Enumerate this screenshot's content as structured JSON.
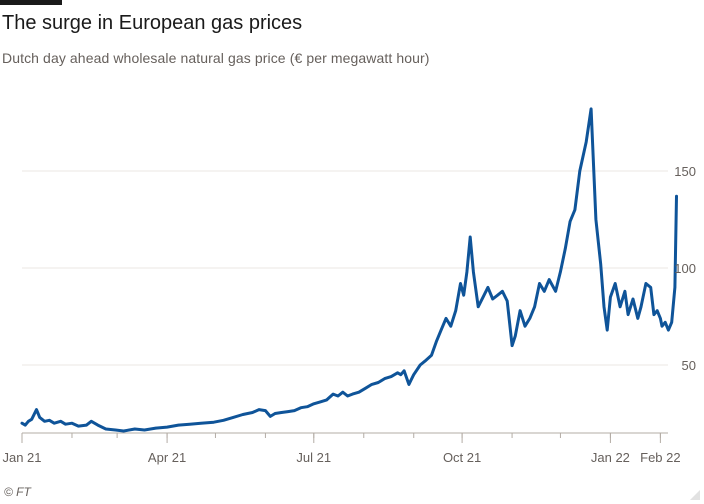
{
  "header": {
    "title": "The surge in European gas prices",
    "subtitle": "Dutch day ahead wholesale natural gas price (€ per megawatt hour)"
  },
  "footer": {
    "source": "© FT"
  },
  "colors": {
    "line": "#0f5499",
    "grid": "#ebe7e3",
    "axis": "#b3aca5",
    "text": "#66605c"
  },
  "chart_data": {
    "type": "line",
    "title": "The surge in European gas prices",
    "subtitle": "Dutch day ahead wholesale natural gas price (€ per megawatt hour)",
    "xlabel": "",
    "ylabel": "",
    "ylim": [
      18,
      180
    ],
    "xlim": [
      "2021-01-01",
      "2022-02-02"
    ],
    "grid": true,
    "legend": "none",
    "y_ticks": [
      {
        "value": 50,
        "label": "50"
      },
      {
        "value": 100,
        "label": "100"
      },
      {
        "value": 150,
        "label": "150"
      }
    ],
    "x_ticks": [
      {
        "date": "2021-01-01",
        "label": "Jan 21"
      },
      {
        "date": "2021-04-01",
        "label": "Apr 21"
      },
      {
        "date": "2021-07-01",
        "label": "Jul 21"
      },
      {
        "date": "2021-10-01",
        "label": "Oct 21"
      },
      {
        "date": "2022-01-01",
        "label": "Jan 22"
      },
      {
        "date": "2022-02-01",
        "label": "Feb 22"
      }
    ],
    "series": [
      {
        "values": [
          {
            "x": "2021-01-01",
            "y": 20.0
          },
          {
            "x": "2021-01-03",
            "y": 19.0
          },
          {
            "x": "2021-01-05",
            "y": 21.0
          },
          {
            "x": "2021-01-07",
            "y": 22.0
          },
          {
            "x": "2021-01-10",
            "y": 27.0
          },
          {
            "x": "2021-01-12",
            "y": 23.0
          },
          {
            "x": "2021-01-15",
            "y": 21.0
          },
          {
            "x": "2021-01-18",
            "y": 21.5
          },
          {
            "x": "2021-01-21",
            "y": 20.0
          },
          {
            "x": "2021-01-25",
            "y": 21.0
          },
          {
            "x": "2021-01-28",
            "y": 19.5
          },
          {
            "x": "2021-02-01",
            "y": 20.0
          },
          {
            "x": "2021-02-05",
            "y": 18.5
          },
          {
            "x": "2021-02-10",
            "y": 19.0
          },
          {
            "x": "2021-02-13",
            "y": 21.0
          },
          {
            "x": "2021-02-17",
            "y": 19.0
          },
          {
            "x": "2021-02-22",
            "y": 17.0
          },
          {
            "x": "2021-02-28",
            "y": 16.5
          },
          {
            "x": "2021-03-05",
            "y": 16.0
          },
          {
            "x": "2021-03-12",
            "y": 17.0
          },
          {
            "x": "2021-03-18",
            "y": 16.5
          },
          {
            "x": "2021-03-25",
            "y": 17.5
          },
          {
            "x": "2021-04-01",
            "y": 18.0
          },
          {
            "x": "2021-04-08",
            "y": 19.0
          },
          {
            "x": "2021-04-15",
            "y": 19.5
          },
          {
            "x": "2021-04-22",
            "y": 20.0
          },
          {
            "x": "2021-04-30",
            "y": 20.5
          },
          {
            "x": "2021-05-06",
            "y": 21.5
          },
          {
            "x": "2021-05-12",
            "y": 23.0
          },
          {
            "x": "2021-05-18",
            "y": 24.5
          },
          {
            "x": "2021-05-24",
            "y": 25.5
          },
          {
            "x": "2021-05-28",
            "y": 27.0
          },
          {
            "x": "2021-06-01",
            "y": 26.5
          },
          {
            "x": "2021-06-04",
            "y": 23.5
          },
          {
            "x": "2021-06-07",
            "y": 25.0
          },
          {
            "x": "2021-06-11",
            "y": 25.5
          },
          {
            "x": "2021-06-15",
            "y": 26.0
          },
          {
            "x": "2021-06-19",
            "y": 26.5
          },
          {
            "x": "2021-06-23",
            "y": 28.0
          },
          {
            "x": "2021-06-27",
            "y": 28.5
          },
          {
            "x": "2021-07-01",
            "y": 30.0
          },
          {
            "x": "2021-07-05",
            "y": 31.0
          },
          {
            "x": "2021-07-09",
            "y": 32.0
          },
          {
            "x": "2021-07-13",
            "y": 35.0
          },
          {
            "x": "2021-07-16",
            "y": 34.0
          },
          {
            "x": "2021-07-19",
            "y": 36.0
          },
          {
            "x": "2021-07-22",
            "y": 34.0
          },
          {
            "x": "2021-07-25",
            "y": 35.0
          },
          {
            "x": "2021-07-29",
            "y": 36.0
          },
          {
            "x": "2021-08-02",
            "y": 38.0
          },
          {
            "x": "2021-08-06",
            "y": 40.0
          },
          {
            "x": "2021-08-10",
            "y": 41.0
          },
          {
            "x": "2021-08-14",
            "y": 43.0
          },
          {
            "x": "2021-08-18",
            "y": 44.0
          },
          {
            "x": "2021-08-22",
            "y": 46.0
          },
          {
            "x": "2021-08-24",
            "y": 45.0
          },
          {
            "x": "2021-08-26",
            "y": 47.0
          },
          {
            "x": "2021-08-29",
            "y": 40.0
          },
          {
            "x": "2021-09-01",
            "y": 45.0
          },
          {
            "x": "2021-09-05",
            "y": 50.0
          },
          {
            "x": "2021-09-08",
            "y": 52.0
          },
          {
            "x": "2021-09-12",
            "y": 55.0
          },
          {
            "x": "2021-09-15",
            "y": 62.0
          },
          {
            "x": "2021-09-18",
            "y": 68.0
          },
          {
            "x": "2021-09-21",
            "y": 74.0
          },
          {
            "x": "2021-09-24",
            "y": 70.0
          },
          {
            "x": "2021-09-27",
            "y": 78.0
          },
          {
            "x": "2021-09-30",
            "y": 92.0
          },
          {
            "x": "2021-10-02",
            "y": 86.0
          },
          {
            "x": "2021-10-04",
            "y": 98.0
          },
          {
            "x": "2021-10-06",
            "y": 116.0
          },
          {
            "x": "2021-10-08",
            "y": 98.0
          },
          {
            "x": "2021-10-11",
            "y": 80.0
          },
          {
            "x": "2021-10-14",
            "y": 85.0
          },
          {
            "x": "2021-10-17",
            "y": 90.0
          },
          {
            "x": "2021-10-20",
            "y": 84.0
          },
          {
            "x": "2021-10-23",
            "y": 86.0
          },
          {
            "x": "2021-10-26",
            "y": 88.0
          },
          {
            "x": "2021-10-29",
            "y": 83.0
          },
          {
            "x": "2021-11-01",
            "y": 60.0
          },
          {
            "x": "2021-11-03",
            "y": 65.0
          },
          {
            "x": "2021-11-06",
            "y": 78.0
          },
          {
            "x": "2021-11-09",
            "y": 70.0
          },
          {
            "x": "2021-11-12",
            "y": 74.0
          },
          {
            "x": "2021-11-15",
            "y": 80.0
          },
          {
            "x": "2021-11-18",
            "y": 92.0
          },
          {
            "x": "2021-11-21",
            "y": 88.0
          },
          {
            "x": "2021-11-24",
            "y": 94.0
          },
          {
            "x": "2021-11-28",
            "y": 88.0
          },
          {
            "x": "2021-12-01",
            "y": 98.0
          },
          {
            "x": "2021-12-04",
            "y": 110.0
          },
          {
            "x": "2021-12-07",
            "y": 124.0
          },
          {
            "x": "2021-12-10",
            "y": 130.0
          },
          {
            "x": "2021-12-13",
            "y": 150.0
          },
          {
            "x": "2021-12-17",
            "y": 165.0
          },
          {
            "x": "2021-12-20",
            "y": 182.0
          },
          {
            "x": "2021-12-23",
            "y": 125.0
          },
          {
            "x": "2021-12-26",
            "y": 102.0
          },
          {
            "x": "2021-12-28",
            "y": 80.0
          },
          {
            "x": "2021-12-30",
            "y": 68.0
          },
          {
            "x": "2022-01-01",
            "y": 85.0
          },
          {
            "x": "2022-01-04",
            "y": 92.0
          },
          {
            "x": "2022-01-07",
            "y": 80.0
          },
          {
            "x": "2022-01-10",
            "y": 88.0
          },
          {
            "x": "2022-01-12",
            "y": 76.0
          },
          {
            "x": "2022-01-15",
            "y": 84.0
          },
          {
            "x": "2022-01-18",
            "y": 74.0
          },
          {
            "x": "2022-01-20",
            "y": 80.0
          },
          {
            "x": "2022-01-23",
            "y": 92.0
          },
          {
            "x": "2022-01-26",
            "y": 90.0
          },
          {
            "x": "2022-01-28",
            "y": 76.0
          },
          {
            "x": "2022-01-30",
            "y": 78.0
          },
          {
            "x": "2022-02-01",
            "y": 74.0
          },
          {
            "x": "2022-02-02",
            "y": 70.0
          },
          {
            "x": "2022-02-04",
            "y": 72.0
          },
          {
            "x": "2022-02-06",
            "y": 68.0
          },
          {
            "x": "2022-02-08",
            "y": 72.0
          },
          {
            "x": "2022-02-10",
            "y": 90.0
          },
          {
            "x": "2022-02-11",
            "y": 137.0
          }
        ]
      }
    ]
  }
}
